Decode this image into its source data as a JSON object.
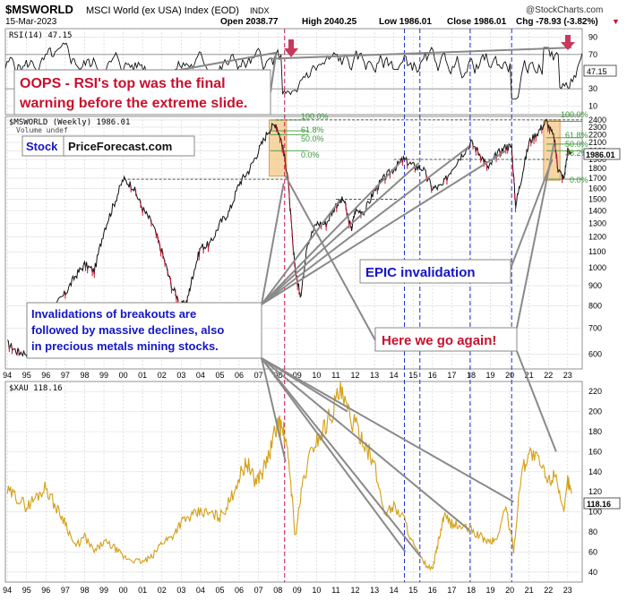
{
  "header": {
    "symbol": "$MSWORLD",
    "name": "MSCI World (ex USA) Index (EOD)",
    "exchange": "INDX",
    "date": "15-Mar-2023",
    "open": "Open 2038.77",
    "high": "High 2040.25",
    "low": "Low 1986.01",
    "close": "Close 1986.01",
    "change": "Chg -78.93 (-3.82%)",
    "change_marker": "▼",
    "copyright": "@StockCharts.com"
  },
  "colors": {
    "gold": "#d4a017",
    "annotation_red": "#c8102e",
    "annotation_blue": "#1515c8",
    "arrow_red": "#c8385a",
    "fib_green": "#3a9a3a",
    "vline_blue": "#2030d0",
    "vline_red": "#c01050",
    "highlight": "#f4c884"
  },
  "chart_data": [
    {
      "id": "rsi",
      "type": "line",
      "title": "RSI(14) 47.15",
      "current": "47.15",
      "yticks": [
        "90",
        "70",
        "50",
        "30",
        "10"
      ],
      "ylim": [
        0,
        100
      ],
      "levels": [
        70,
        30
      ]
    },
    {
      "id": "msworld",
      "type": "line",
      "title": "$MSWORLD (Weekly) 1986.01",
      "subtitle": "Volume undef",
      "current": "1986.01",
      "scale": "log",
      "yticks": [
        "2400",
        "2300",
        "2200",
        "2100",
        "2000",
        "1900",
        "1800",
        "1700",
        "1600",
        "1500",
        "1400",
        "1300",
        "1200",
        "1100",
        "1000",
        "900",
        "800",
        "700",
        "600"
      ],
      "ylim": [
        550,
        2450
      ],
      "xticks": [
        "94",
        "95",
        "96",
        "97",
        "98",
        "99",
        "00",
        "01",
        "02",
        "03",
        "04",
        "05",
        "06",
        "07",
        "08",
        "09",
        "10",
        "11",
        "12",
        "13",
        "14",
        "15",
        "16",
        "17",
        "18",
        "19",
        "20",
        "21",
        "22",
        "23"
      ],
      "x": [
        1994.0,
        1994.5,
        1995.0,
        1995.5,
        1996.0,
        1996.5,
        1997.0,
        1997.5,
        1998.0,
        1998.5,
        1999.0,
        1999.5,
        2000.0,
        2000.5,
        2001.0,
        2001.5,
        2002.0,
        2002.5,
        2003.0,
        2003.3,
        2003.6,
        2004.0,
        2004.5,
        2005.0,
        2005.5,
        2006.0,
        2006.5,
        2007.0,
        2007.5,
        2007.9,
        2008.2,
        2008.5,
        2008.8,
        2009.0,
        2009.2,
        2009.5,
        2010.0,
        2010.5,
        2011.0,
        2011.4,
        2011.8,
        2012.0,
        2012.5,
        2013.0,
        2013.5,
        2014.0,
        2014.5,
        2015.0,
        2015.5,
        2016.0,
        2016.5,
        2017.0,
        2017.5,
        2018.0,
        2018.5,
        2018.9,
        2019.3,
        2019.8,
        2020.1,
        2020.3,
        2020.6,
        2021.0,
        2021.5,
        2021.9,
        2022.3,
        2022.5,
        2022.8,
        2023.0,
        2023.2
      ],
      "values": [
        640,
        610,
        605,
        680,
        760,
        800,
        860,
        950,
        1020,
        980,
        1250,
        1450,
        1690,
        1620,
        1420,
        1300,
        1100,
        900,
        800,
        820,
        960,
        1130,
        1150,
        1300,
        1400,
        1650,
        1780,
        2000,
        2250,
        2350,
        2100,
        1750,
        1100,
        920,
        850,
        1150,
        1300,
        1300,
        1450,
        1500,
        1250,
        1400,
        1400,
        1580,
        1700,
        1800,
        1900,
        1830,
        1800,
        1600,
        1620,
        1800,
        1950,
        2100,
        1950,
        1800,
        1950,
        2050,
        2050,
        1450,
        1700,
        2100,
        2250,
        2380,
        2150,
        1800,
        1690,
        2000,
        1986
      ]
    },
    {
      "id": "xau",
      "type": "line",
      "title": "$XAU 118.16",
      "current": "118.16",
      "yticks": [
        "220",
        "200",
        "180",
        "160",
        "140",
        "120",
        "100",
        "80",
        "60",
        "40"
      ],
      "ylim": [
        30,
        230
      ],
      "x": [
        1994.0,
        1994.5,
        1995.0,
        1995.5,
        1996.0,
        1996.5,
        1997.0,
        1997.5,
        1998.0,
        1998.5,
        1999.0,
        1999.5,
        2000.0,
        2000.5,
        2001.0,
        2001.5,
        2002.0,
        2002.5,
        2003.0,
        2003.5,
        2004.0,
        2004.5,
        2005.0,
        2005.5,
        2006.0,
        2006.4,
        2006.8,
        2007.2,
        2007.6,
        2008.0,
        2008.3,
        2008.6,
        2008.9,
        2009.3,
        2009.8,
        2010.3,
        2010.8,
        2011.2,
        2011.6,
        2012.0,
        2012.5,
        2013.0,
        2013.5,
        2014.0,
        2014.5,
        2015.0,
        2015.5,
        2016.0,
        2016.3,
        2016.6,
        2017.0,
        2017.5,
        2018.0,
        2018.5,
        2018.9,
        2019.3,
        2019.8,
        2020.2,
        2020.6,
        2021.0,
        2021.5,
        2022.0,
        2022.4,
        2022.8,
        2023.0,
        2023.2
      ],
      "values": [
        120,
        115,
        105,
        115,
        125,
        105,
        90,
        65,
        75,
        60,
        70,
        65,
        55,
        52,
        50,
        55,
        70,
        75,
        90,
        95,
        100,
        98,
        95,
        110,
        135,
        150,
        130,
        140,
        160,
        190,
        180,
        145,
        75,
        130,
        165,
        180,
        200,
        220,
        200,
        185,
        170,
        145,
        100,
        105,
        95,
        68,
        50,
        42,
        70,
        95,
        88,
        85,
        82,
        75,
        70,
        72,
        105,
        62,
        140,
        160,
        150,
        130,
        140,
        95,
        132,
        118
      ]
    }
  ],
  "annotations": {
    "rsi_note_line1": "OOPS - RSI's top was the final",
    "rsi_note_line2": "warning before the extreme slide.",
    "logo_stock": "Stock",
    "logo_rest": "PriceForecast.com",
    "epic": "EPIC invalidation",
    "invalidations_line1": "Invalidations of breakouts are",
    "invalidations_line2": "followed by massive declines, also",
    "invalidations_line3": "in precious metals mining stocks.",
    "here_we_go": "Here we go again!",
    "fib_100": "100.0%",
    "fib_618": "61.8%",
    "fib_50": "50.0%",
    "fib_382": "38.2%",
    "fib_0": "0.0%"
  }
}
